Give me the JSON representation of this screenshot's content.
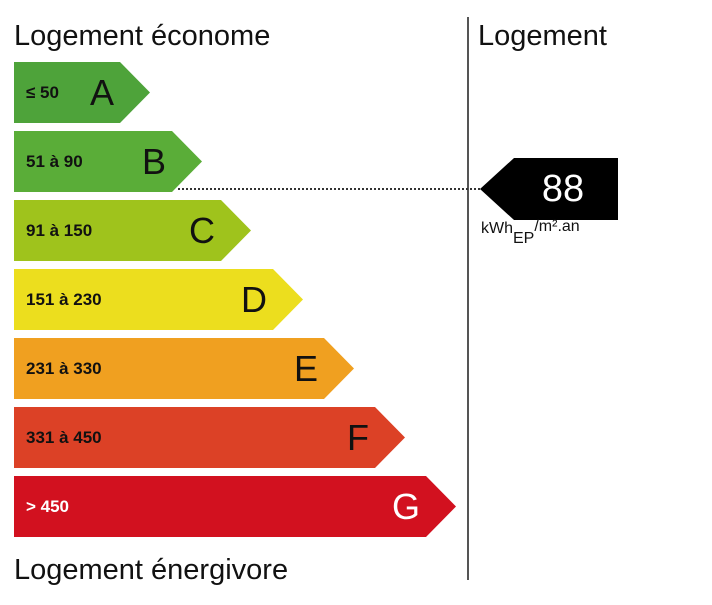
{
  "labels": {
    "top": "Logement économe",
    "bottom": "Logement énergivore",
    "right_title": "Logement"
  },
  "classes": [
    {
      "letter": "A",
      "range": "≤ 50",
      "color": "#4ea33a"
    },
    {
      "letter": "B",
      "range": "51 à 90",
      "color": "#5aad38"
    },
    {
      "letter": "C",
      "range": "91 à 150",
      "color": "#9fc31c"
    },
    {
      "letter": "D",
      "range": "151 à 230",
      "color": "#ecde1e"
    },
    {
      "letter": "E",
      "range": "231 à 330",
      "color": "#f0a020"
    },
    {
      "letter": "F",
      "range": "331 à 450",
      "color": "#dc4126"
    },
    {
      "letter": "G",
      "range": "> 450",
      "color": "#d2111f"
    }
  ],
  "current": {
    "value": "88",
    "class": "B",
    "unit_main": "kWh",
    "unit_sub": "EP",
    "unit_rest": "/m².an"
  }
}
